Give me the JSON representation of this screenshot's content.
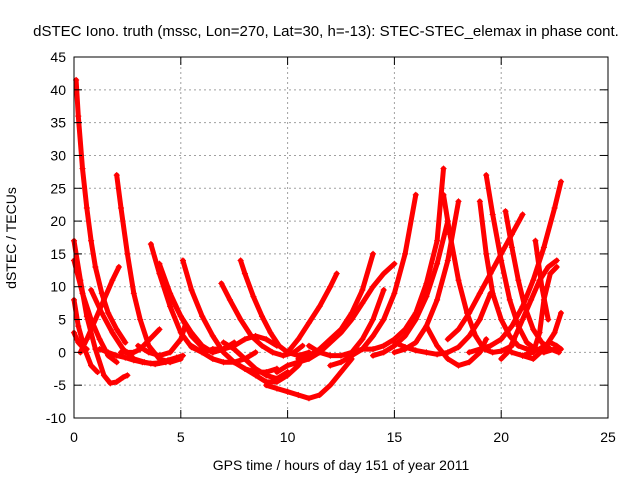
{
  "chart_data": {
    "type": "scatter",
    "title": "dSTEC Iono. truth (mssc, Lon=270, Lat=30, h=-13): STEC-STEC_elemax in phase cont.",
    "xlabel": "GPS time / hours of day 151 of year 2011",
    "ylabel": "dSTEC  / TECUs",
    "xlim": [
      0,
      25
    ],
    "ylim": [
      -10,
      45
    ],
    "xticks": [
      0,
      5,
      10,
      15,
      20,
      25
    ],
    "yticks": [
      -10,
      -5,
      0,
      5,
      10,
      15,
      20,
      25,
      30,
      35,
      40,
      45
    ],
    "grid": true,
    "marker": "plus",
    "color": "#ff0000",
    "series": [
      {
        "x": [
          0.1,
          0.2,
          0.4,
          0.6,
          0.8,
          1.0,
          1.3,
          1.6,
          2.0,
          2.4
        ],
        "y": [
          41.5,
          36,
          28,
          22,
          17,
          13,
          9,
          6,
          3.5,
          1.5
        ]
      },
      {
        "x": [
          0.0,
          0.3,
          0.6,
          1.0,
          1.4,
          1.7,
          2.0,
          2.3,
          2.5
        ],
        "y": [
          17,
          11,
          5.5,
          0.5,
          -3.5,
          -4.7,
          -4.5,
          -3.8,
          -3.5
        ]
      },
      {
        "x": [
          0.0,
          0.4,
          0.8,
          1.2,
          1.6,
          2.0
        ],
        "y": [
          14,
          9,
          5,
          2,
          -0.5,
          -1.5
        ]
      },
      {
        "x": [
          0.0,
          0.2,
          0.5,
          0.8,
          1.1
        ],
        "y": [
          8,
          4,
          0.5,
          -2,
          -3
        ]
      },
      {
        "x": [
          0.0,
          0.2,
          0.4,
          0.6
        ],
        "y": [
          3,
          1.5,
          0.8,
          0.5
        ]
      },
      {
        "x": [
          0.3,
          0.6,
          1.0,
          1.4,
          1.8,
          2.1
        ],
        "y": [
          0,
          2,
          5,
          8,
          11,
          13
        ]
      },
      {
        "x": [
          0.8,
          1.3,
          1.8,
          2.3,
          2.8,
          3.3,
          3.8,
          4.3
        ],
        "y": [
          9.5,
          6,
          3,
          0.5,
          -1,
          -1.5,
          -1.8,
          -1.5
        ]
      },
      {
        "x": [
          1.2,
          1.6,
          2.0,
          2.4,
          2.8,
          3.2,
          3.6,
          4.0,
          4.4,
          4.8,
          5.1
        ],
        "y": [
          0.5,
          0,
          -0.5,
          -0.8,
          -1.2,
          -1.5,
          -1.7,
          -1.6,
          -1.2,
          -0.8,
          -0.5
        ]
      },
      {
        "x": [
          2.0,
          2.2,
          2.5,
          2.8,
          3.1,
          3.5,
          4.0,
          4.5,
          5.0
        ],
        "y": [
          27,
          22,
          15,
          9,
          5,
          1,
          -1,
          -1.5,
          -1
        ]
      },
      {
        "x": [
          2.2,
          2.5,
          2.8,
          3.1,
          3.4,
          3.7,
          4.0
        ],
        "y": [
          0,
          0,
          0,
          0.5,
          1.5,
          2.5,
          3.5
        ]
      },
      {
        "x": [
          3.6,
          4.0,
          4.5,
          5.0,
          5.5,
          6.0,
          6.5
        ],
        "y": [
          16.5,
          12,
          7,
          3,
          0.8,
          0,
          0.5
        ]
      },
      {
        "x": [
          4.0,
          4.5,
          5.0,
          5.5,
          6.0,
          6.5,
          7.0,
          7.5
        ],
        "y": [
          13.5,
          9,
          5.5,
          2.5,
          0.8,
          0,
          0.5,
          1.5
        ]
      },
      {
        "x": [
          4.6,
          5.0,
          5.5,
          6.0,
          6.5,
          7.0
        ],
        "y": [
          8,
          5.5,
          3,
          1,
          0,
          0.5
        ]
      },
      {
        "x": [
          3.0,
          3.5,
          4.0,
          4.5,
          5.0,
          5.2
        ],
        "y": [
          1,
          0,
          -0.5,
          0,
          2,
          4
        ]
      },
      {
        "x": [
          5.1,
          5.5,
          6.0,
          6.5,
          7.0,
          7.5,
          8.0,
          8.5,
          9.0,
          9.5
        ],
        "y": [
          14,
          9.5,
          5.5,
          2.5,
          0,
          -1.5,
          -2.5,
          -3,
          -3,
          -2.5
        ]
      },
      {
        "x": [
          5.5,
          6.0,
          6.5,
          7.0,
          7.5,
          8.0,
          8.5
        ],
        "y": [
          1,
          0,
          -1,
          -1.5,
          -1.5,
          -1,
          0
        ]
      },
      {
        "x": [
          6.5,
          7.0,
          7.5,
          8.0,
          8.5,
          9.0,
          9.5
        ],
        "y": [
          0.5,
          0.5,
          1,
          2,
          2.5,
          2,
          1
        ]
      },
      {
        "x": [
          7.0,
          7.5,
          8.0,
          8.5,
          9.0,
          9.5,
          10.0
        ],
        "y": [
          1.5,
          0.5,
          -1,
          -2.5,
          -3.5,
          -4,
          -3
        ]
      },
      {
        "x": [
          7.5,
          8.0,
          8.5,
          9.0,
          9.5,
          10.0,
          10.5,
          10.8
        ],
        "y": [
          -1.5,
          -2.5,
          -3.5,
          -4.5,
          -4.5,
          -3.5,
          -2,
          -0.5
        ]
      },
      {
        "x": [
          7.8,
          8.0,
          8.4,
          8.8,
          9.2,
          9.6,
          10.0,
          10.5,
          11.0
        ],
        "y": [
          14,
          12,
          8.5,
          5.5,
          3,
          1,
          0,
          -0.5,
          0
        ]
      },
      {
        "x": [
          6.9,
          7.3,
          7.8,
          8.3,
          8.8,
          9.3,
          9.8,
          10.3,
          10.7
        ],
        "y": [
          10.5,
          8,
          5,
          2.5,
          1,
          0,
          -0.5,
          0,
          1
        ]
      },
      {
        "x": [
          9.0,
          9.5,
          10.0,
          10.5,
          11.0,
          11.5,
          12.0,
          12.5,
          13.0
        ],
        "y": [
          -5,
          -5.5,
          -6,
          -6.5,
          -7,
          -6.5,
          -5,
          -3,
          -1
        ]
      },
      {
        "x": [
          9.5,
          10.0,
          10.5,
          11.0,
          11.5,
          12.0,
          12.5,
          13.0,
          13.5,
          14.0,
          14.5,
          15.0
        ],
        "y": [
          -3,
          -2,
          -1.5,
          -1,
          0,
          1.5,
          3,
          5,
          7.5,
          10,
          12,
          13.5
        ]
      },
      {
        "x": [
          10.0,
          10.5,
          11.0,
          11.5,
          12.0,
          12.3
        ],
        "y": [
          0,
          2,
          4.5,
          7,
          10,
          12
        ]
      },
      {
        "x": [
          10.5,
          11.0,
          11.5,
          12.0,
          12.5,
          13.0,
          13.5,
          14.0
        ],
        "y": [
          -1,
          -0.5,
          0.5,
          2,
          3.5,
          6,
          9.5,
          15
        ]
      },
      {
        "x": [
          11.0,
          11.5,
          12.0,
          12.5,
          13.0,
          13.5,
          14.0,
          14.5
        ],
        "y": [
          1,
          0,
          -0.5,
          -0.5,
          0,
          2,
          5,
          9.5
        ]
      },
      {
        "x": [
          12.0,
          12.5,
          13.0,
          13.5,
          14.0,
          14.5,
          15.0,
          15.5,
          16.0
        ],
        "y": [
          -2,
          -1.5,
          -0.5,
          0.5,
          2.5,
          5,
          9,
          15,
          24
        ]
      },
      {
        "x": [
          13.0,
          13.5,
          14.0,
          14.5,
          15.0,
          15.5,
          16.0,
          16.5,
          17.0,
          17.3
        ],
        "y": [
          0,
          0.5,
          0.5,
          1,
          2,
          3.5,
          6,
          10.5,
          17,
          28
        ]
      },
      {
        "x": [
          14.0,
          14.5,
          15.0,
          15.5,
          16.0,
          16.5,
          17.0,
          17.5
        ],
        "y": [
          -0.5,
          0,
          1,
          2.5,
          5,
          8.5,
          13.5,
          20
        ]
      },
      {
        "x": [
          15.0,
          15.5,
          16.0,
          16.5,
          17.0,
          17.5,
          18.0
        ],
        "y": [
          0,
          0.5,
          1.5,
          4,
          8,
          14,
          23
        ]
      },
      {
        "x": [
          15.0,
          15.5,
          16.0,
          16.5,
          17.0,
          17.5,
          18.0,
          18.5,
          19.0,
          19.5
        ],
        "y": [
          1.5,
          0.8,
          0.3,
          0,
          -0.3,
          0,
          0.8,
          2.5,
          5,
          9
        ]
      },
      {
        "x": [
          16.5,
          17.0,
          17.5,
          18.0,
          18.5,
          19.0,
          19.3
        ],
        "y": [
          4,
          1,
          -1,
          -2,
          -1.5,
          0,
          2
        ]
      },
      {
        "x": [
          17.3,
          17.6,
          18.0,
          18.4,
          18.8,
          19.2,
          19.6,
          20.0,
          20.5
        ],
        "y": [
          24,
          18,
          11,
          6,
          2.5,
          0.5,
          0,
          0.2,
          1
        ]
      },
      {
        "x": [
          17.5,
          18.0,
          18.5,
          19.0,
          19.5,
          20.0,
          20.5,
          21.0
        ],
        "y": [
          2,
          3.5,
          6,
          9,
          12,
          15,
          18,
          21
        ]
      },
      {
        "x": [
          19.0,
          19.3,
          19.6,
          20.0,
          20.4,
          20.8,
          21.2,
          21.6,
          22.0
        ],
        "y": [
          23,
          15,
          9,
          5,
          2.5,
          1,
          0.5,
          0.3,
          0.5
        ]
      },
      {
        "x": [
          19.3,
          19.6,
          20.0,
          20.4,
          20.8,
          21.2,
          21.6,
          22.0,
          22.5
        ],
        "y": [
          27,
          21,
          14,
          8,
          4,
          1.5,
          0.5,
          0,
          0.5
        ]
      },
      {
        "x": [
          18.5,
          19.0,
          19.5,
          20.0,
          20.5,
          21.0,
          21.5,
          22.0,
          22.5,
          22.8
        ],
        "y": [
          0,
          0.5,
          1,
          2,
          4,
          7,
          11,
          16,
          22,
          26
        ]
      },
      {
        "x": [
          20.0,
          20.3,
          20.6,
          21.0,
          21.4,
          21.8,
          22.2,
          22.6
        ],
        "y": [
          -1,
          0,
          2,
          5,
          8,
          11,
          13,
          14
        ]
      },
      {
        "x": [
          20.2,
          20.5,
          20.8,
          21.1,
          21.5,
          21.9,
          22.3,
          22.7
        ],
        "y": [
          21.5,
          16,
          11,
          7,
          3.5,
          1.5,
          0.5,
          0
        ]
      },
      {
        "x": [
          20.5,
          21.0,
          21.5,
          22.0,
          22.5,
          22.8
        ],
        "y": [
          0,
          -0.5,
          -1,
          0.5,
          3,
          6
        ]
      },
      {
        "x": [
          21.0,
          21.5,
          21.8,
          22.0,
          22.3,
          22.6
        ],
        "y": [
          -0.5,
          0,
          3,
          8,
          12,
          13
        ]
      },
      {
        "x": [
          21.5,
          21.8,
          22.0,
          22.3,
          22.6,
          22.8
        ],
        "y": [
          0.5,
          0.5,
          1,
          1.5,
          1,
          0.5
        ]
      },
      {
        "x": [
          21.6,
          21.9,
          22.2
        ],
        "y": [
          17,
          10,
          5
        ]
      }
    ]
  }
}
